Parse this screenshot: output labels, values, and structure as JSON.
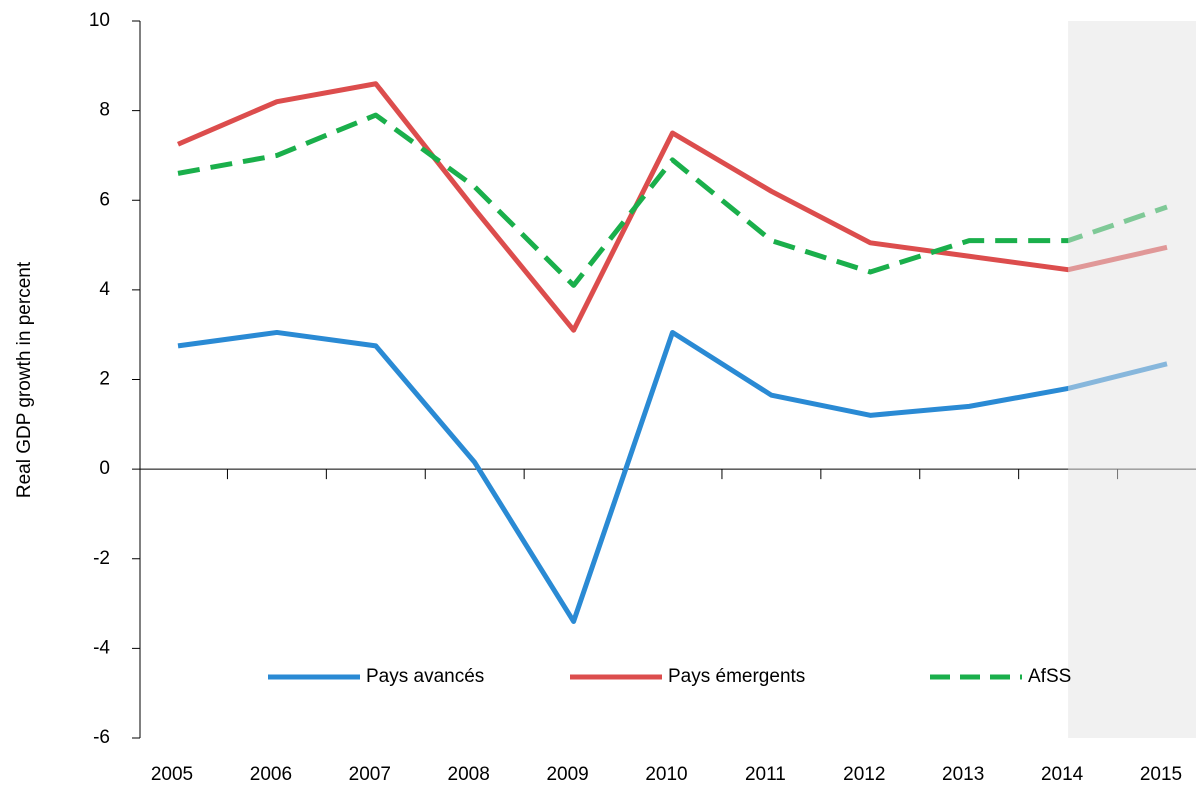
{
  "chart_data": {
    "type": "line",
    "y_label": "Real GDP growth in percent",
    "categories": [
      "2005",
      "2006",
      "2007",
      "2008",
      "2009",
      "2010",
      "2011",
      "2012",
      "2013",
      "2014",
      "2015"
    ],
    "series": [
      {
        "name": "Pays avancés",
        "color": "#2a8ad4",
        "dash": false,
        "values": [
          2.75,
          3.05,
          2.75,
          0.15,
          -3.4,
          3.05,
          1.65,
          1.2,
          1.4,
          1.8,
          2.35
        ]
      },
      {
        "name": "Pays émergents",
        "color": "#dc4d4d",
        "dash": false,
        "values": [
          7.25,
          8.2,
          8.6,
          5.8,
          3.1,
          7.5,
          6.2,
          5.05,
          4.75,
          4.45,
          4.95
        ]
      },
      {
        "name": "AfSS",
        "color": "#1aaf4b",
        "dash": true,
        "values": [
          6.6,
          7.0,
          7.9,
          6.3,
          4.1,
          6.9,
          5.1,
          4.4,
          5.1,
          5.1,
          5.85
        ]
      }
    ],
    "shaded_from": "2014",
    "ylim": [
      -6,
      10
    ],
    "yticks": [
      -6,
      -4,
      -2,
      0,
      2,
      4,
      6,
      8,
      10
    ],
    "legend": "bottom"
  }
}
